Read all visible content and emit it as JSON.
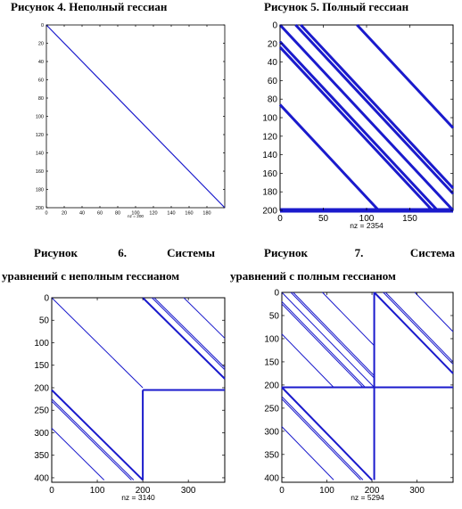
{
  "captions": {
    "fig4": "Рисунок 4. Неполный гессиан",
    "fig5": "Рисунок 5. Полный гессиан",
    "fig6_line1": [
      "Рисунок",
      "6.",
      "Системы"
    ],
    "fig6_line2": "уравнений с неполным гессианом",
    "fig7_line1": [
      "Рисунок",
      "7.",
      "Система"
    ],
    "fig7_line2": "уравнений с полным гессианом"
  },
  "chart_data": [
    {
      "id": "fig4",
      "type": "scatter",
      "title": "",
      "xlabel": "nz = 200",
      "xlim": [
        0,
        200
      ],
      "ylim": [
        0,
        200
      ],
      "y_reversed": true,
      "xticks": [
        0,
        20,
        40,
        60,
        80,
        100,
        120,
        140,
        160,
        180
      ],
      "yticks": [
        0,
        20,
        40,
        60,
        80,
        100,
        120,
        140,
        160,
        180,
        200
      ],
      "color": "#1a1acc",
      "segments": [
        {
          "x1": 0,
          "y1": 0,
          "x2": 200,
          "y2": 200,
          "weight": 2
        }
      ]
    },
    {
      "id": "fig5",
      "type": "scatter",
      "title": "",
      "xlabel": "nz = 2354",
      "xlim": [
        0,
        200
      ],
      "ylim": [
        0,
        200
      ],
      "y_reversed": true,
      "xticks": [
        0,
        50,
        100,
        150
      ],
      "yticks": [
        0,
        20,
        40,
        60,
        80,
        100,
        120,
        140,
        160,
        180,
        200
      ],
      "color": "#1a1acc",
      "segments": [
        {
          "x1": 0,
          "y1": 0,
          "x2": 200,
          "y2": 200,
          "weight": 3
        },
        {
          "x1": 18,
          "y1": 0,
          "x2": 200,
          "y2": 182,
          "weight": 3
        },
        {
          "x1": 24,
          "y1": 0,
          "x2": 200,
          "y2": 176,
          "weight": 3
        },
        {
          "x1": 89,
          "y1": 0,
          "x2": 200,
          "y2": 111,
          "weight": 3
        },
        {
          "x1": 0,
          "y1": 18,
          "x2": 182,
          "y2": 200,
          "weight": 3
        },
        {
          "x1": 0,
          "y1": 24,
          "x2": 176,
          "y2": 200,
          "weight": 3
        },
        {
          "x1": 0,
          "y1": 86,
          "x2": 114,
          "y2": 200,
          "weight": 3
        },
        {
          "x1": 0,
          "y1": 200,
          "x2": 200,
          "y2": 200,
          "weight": 5
        }
      ]
    },
    {
      "id": "fig6",
      "type": "scatter",
      "title": "",
      "xlabel": "nz = 3140",
      "xlim": [
        0,
        380
      ],
      "ylim": [
        0,
        410
      ],
      "y_reversed": true,
      "xticks": [
        0,
        100,
        200,
        300
      ],
      "yticks": [
        0,
        50,
        100,
        150,
        200,
        250,
        300,
        350,
        400
      ],
      "color": "#1a1acc",
      "segments": [
        {
          "x1": 0,
          "y1": 0,
          "x2": 200,
          "y2": 200,
          "weight": 1
        },
        {
          "x1": 200,
          "y1": 0,
          "x2": 380,
          "y2": 180,
          "weight": 2
        },
        {
          "x1": 220,
          "y1": 0,
          "x2": 380,
          "y2": 160,
          "weight": 1
        },
        {
          "x1": 225,
          "y1": 0,
          "x2": 380,
          "y2": 155,
          "weight": 1
        },
        {
          "x1": 290,
          "y1": 0,
          "x2": 380,
          "y2": 90,
          "weight": 1
        },
        {
          "x1": 0,
          "y1": 205,
          "x2": 200,
          "y2": 405,
          "weight": 2
        },
        {
          "x1": 0,
          "y1": 225,
          "x2": 180,
          "y2": 405,
          "weight": 1
        },
        {
          "x1": 0,
          "y1": 230,
          "x2": 175,
          "y2": 405,
          "weight": 1
        },
        {
          "x1": 0,
          "y1": 290,
          "x2": 115,
          "y2": 405,
          "weight": 1
        },
        {
          "x1": 200,
          "y1": 205,
          "x2": 380,
          "y2": 205,
          "weight": 2
        },
        {
          "x1": 200,
          "y1": 205,
          "x2": 200,
          "y2": 405,
          "weight": 2
        }
      ]
    },
    {
      "id": "fig7",
      "type": "scatter",
      "title": "",
      "xlabel": "nz = 5294",
      "xlim": [
        0,
        380
      ],
      "ylim": [
        0,
        410
      ],
      "y_reversed": true,
      "xticks": [
        0,
        100,
        200,
        300
      ],
      "yticks": [
        0,
        50,
        100,
        150,
        200,
        250,
        300,
        350,
        400
      ],
      "color": "#1a1acc",
      "segments": [
        {
          "x1": 0,
          "y1": 0,
          "x2": 205,
          "y2": 205,
          "weight": 1
        },
        {
          "x1": 0,
          "y1": 20,
          "x2": 185,
          "y2": 205,
          "weight": 1
        },
        {
          "x1": 0,
          "y1": 25,
          "x2": 180,
          "y2": 205,
          "weight": 1
        },
        {
          "x1": 0,
          "y1": 90,
          "x2": 115,
          "y2": 205,
          "weight": 1
        },
        {
          "x1": 20,
          "y1": 0,
          "x2": 205,
          "y2": 185,
          "weight": 1
        },
        {
          "x1": 25,
          "y1": 0,
          "x2": 205,
          "y2": 180,
          "weight": 1
        },
        {
          "x1": 90,
          "y1": 0,
          "x2": 205,
          "y2": 115,
          "weight": 1
        },
        {
          "x1": 205,
          "y1": 0,
          "x2": 380,
          "y2": 175,
          "weight": 2
        },
        {
          "x1": 225,
          "y1": 0,
          "x2": 380,
          "y2": 155,
          "weight": 1
        },
        {
          "x1": 230,
          "y1": 0,
          "x2": 380,
          "y2": 150,
          "weight": 1
        },
        {
          "x1": 295,
          "y1": 0,
          "x2": 380,
          "y2": 85,
          "weight": 1
        },
        {
          "x1": 0,
          "y1": 205,
          "x2": 200,
          "y2": 405,
          "weight": 2
        },
        {
          "x1": 0,
          "y1": 225,
          "x2": 180,
          "y2": 405,
          "weight": 1
        },
        {
          "x1": 0,
          "y1": 230,
          "x2": 175,
          "y2": 405,
          "weight": 1
        },
        {
          "x1": 0,
          "y1": 290,
          "x2": 115,
          "y2": 405,
          "weight": 1
        },
        {
          "x1": 0,
          "y1": 205,
          "x2": 380,
          "y2": 205,
          "weight": 2
        },
        {
          "x1": 205,
          "y1": 0,
          "x2": 205,
          "y2": 405,
          "weight": 2
        }
      ]
    }
  ]
}
